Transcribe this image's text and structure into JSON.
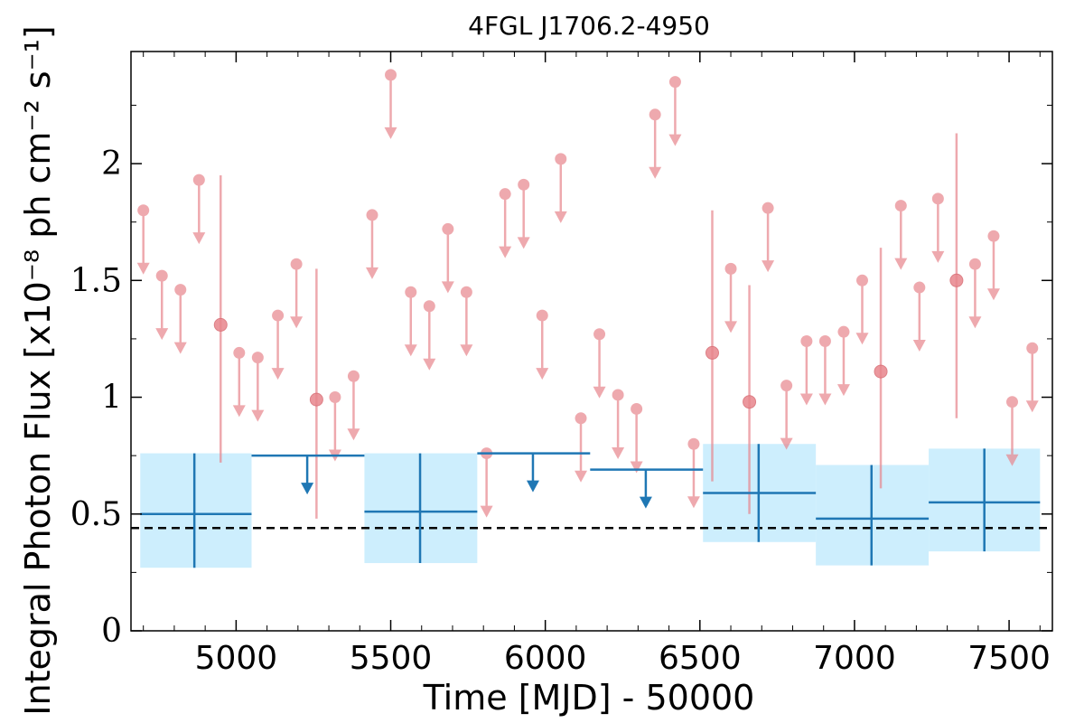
{
  "chart_data": {
    "type": "scatter",
    "title": "4FGL J1706.2-4950",
    "xlabel": "Time [MJD] - 50000",
    "ylabel": "Integral Photon Flux [x10⁻⁸ ph cm⁻² s⁻¹]",
    "xlim": [
      4660,
      7640
    ],
    "ylim": [
      0,
      2.48
    ],
    "x_ticks": [
      5000,
      5500,
      6000,
      6500,
      7000,
      7500
    ],
    "x_tick_labels": [
      "5000",
      "5500",
      "6000",
      "6500",
      "7000",
      "7500"
    ],
    "y_ticks": [
      0,
      0.5,
      1,
      1.5,
      2
    ],
    "y_tick_labels": [
      "0",
      "0.5",
      "1",
      "1.5",
      "2"
    ],
    "average_flux_line": 0.44,
    "colors": {
      "fine_bins": "#e8868d",
      "coarse_bins": "#1f77b4",
      "coarse_band": "#cdeefd",
      "average_line": "#000000"
    },
    "fine_bins": {
      "upper_limits": [
        {
          "x": 4700,
          "y": 1.8
        },
        {
          "x": 4760,
          "y": 1.52
        },
        {
          "x": 4820,
          "y": 1.46
        },
        {
          "x": 4880,
          "y": 1.93
        },
        {
          "x": 5010,
          "y": 1.19
        },
        {
          "x": 5070,
          "y": 1.17
        },
        {
          "x": 5135,
          "y": 1.35
        },
        {
          "x": 5195,
          "y": 1.57
        },
        {
          "x": 5320,
          "y": 1.0
        },
        {
          "x": 5380,
          "y": 1.09
        },
        {
          "x": 5440,
          "y": 1.78
        },
        {
          "x": 5500,
          "y": 2.38
        },
        {
          "x": 5565,
          "y": 1.45
        },
        {
          "x": 5625,
          "y": 1.39
        },
        {
          "x": 5685,
          "y": 1.72
        },
        {
          "x": 5745,
          "y": 1.45
        },
        {
          "x": 5810,
          "y": 0.76
        },
        {
          "x": 5870,
          "y": 1.87
        },
        {
          "x": 5930,
          "y": 1.91
        },
        {
          "x": 5990,
          "y": 1.35
        },
        {
          "x": 6050,
          "y": 2.02
        },
        {
          "x": 6115,
          "y": 0.91
        },
        {
          "x": 6175,
          "y": 1.27
        },
        {
          "x": 6235,
          "y": 1.01
        },
        {
          "x": 6295,
          "y": 0.95
        },
        {
          "x": 6355,
          "y": 2.21
        },
        {
          "x": 6420,
          "y": 2.35
        },
        {
          "x": 6480,
          "y": 0.8
        },
        {
          "x": 6600,
          "y": 1.55
        },
        {
          "x": 6720,
          "y": 1.81
        },
        {
          "x": 6780,
          "y": 1.05
        },
        {
          "x": 6845,
          "y": 1.24
        },
        {
          "x": 6905,
          "y": 1.24
        },
        {
          "x": 6965,
          "y": 1.28
        },
        {
          "x": 7025,
          "y": 1.5
        },
        {
          "x": 7150,
          "y": 1.82
        },
        {
          "x": 7210,
          "y": 1.47
        },
        {
          "x": 7270,
          "y": 1.85
        },
        {
          "x": 7390,
          "y": 1.57
        },
        {
          "x": 7450,
          "y": 1.69
        },
        {
          "x": 7510,
          "y": 0.98
        },
        {
          "x": 7575,
          "y": 1.21
        }
      ],
      "detections": [
        {
          "x": 4950,
          "y": 1.31,
          "ylo": 0.72,
          "yhi": 1.95
        },
        {
          "x": 5260,
          "y": 0.99,
          "ylo": 0.48,
          "yhi": 1.55
        },
        {
          "x": 6540,
          "y": 1.19,
          "ylo": 0.64,
          "yhi": 1.8
        },
        {
          "x": 6660,
          "y": 0.98,
          "ylo": 0.5,
          "yhi": 1.48
        },
        {
          "x": 7085,
          "y": 1.11,
          "ylo": 0.61,
          "yhi": 1.64
        },
        {
          "x": 7330,
          "y": 1.5,
          "ylo": 0.91,
          "yhi": 2.13
        }
      ]
    },
    "coarse_bins": {
      "detections": [
        {
          "x": 4865,
          "xlo": 4690,
          "xhi": 5050,
          "y": 0.5,
          "ylo": 0.27,
          "yhi": 0.76
        },
        {
          "x": 5595,
          "xlo": 5415,
          "xhi": 5780,
          "y": 0.51,
          "ylo": 0.29,
          "yhi": 0.76
        },
        {
          "x": 6690,
          "xlo": 6510,
          "xhi": 6875,
          "y": 0.59,
          "ylo": 0.38,
          "yhi": 0.8
        },
        {
          "x": 7055,
          "xlo": 6875,
          "xhi": 7240,
          "y": 0.48,
          "ylo": 0.28,
          "yhi": 0.71
        },
        {
          "x": 7420,
          "xlo": 7240,
          "xhi": 7600,
          "y": 0.55,
          "ylo": 0.34,
          "yhi": 0.78
        }
      ],
      "upper_limits": [
        {
          "x": 5230,
          "xlo": 5050,
          "xhi": 5415,
          "y": 0.75
        },
        {
          "x": 5960,
          "xlo": 5780,
          "xhi": 6145,
          "y": 0.76
        },
        {
          "x": 6325,
          "xlo": 6145,
          "xhi": 6510,
          "y": 0.69
        }
      ]
    }
  }
}
